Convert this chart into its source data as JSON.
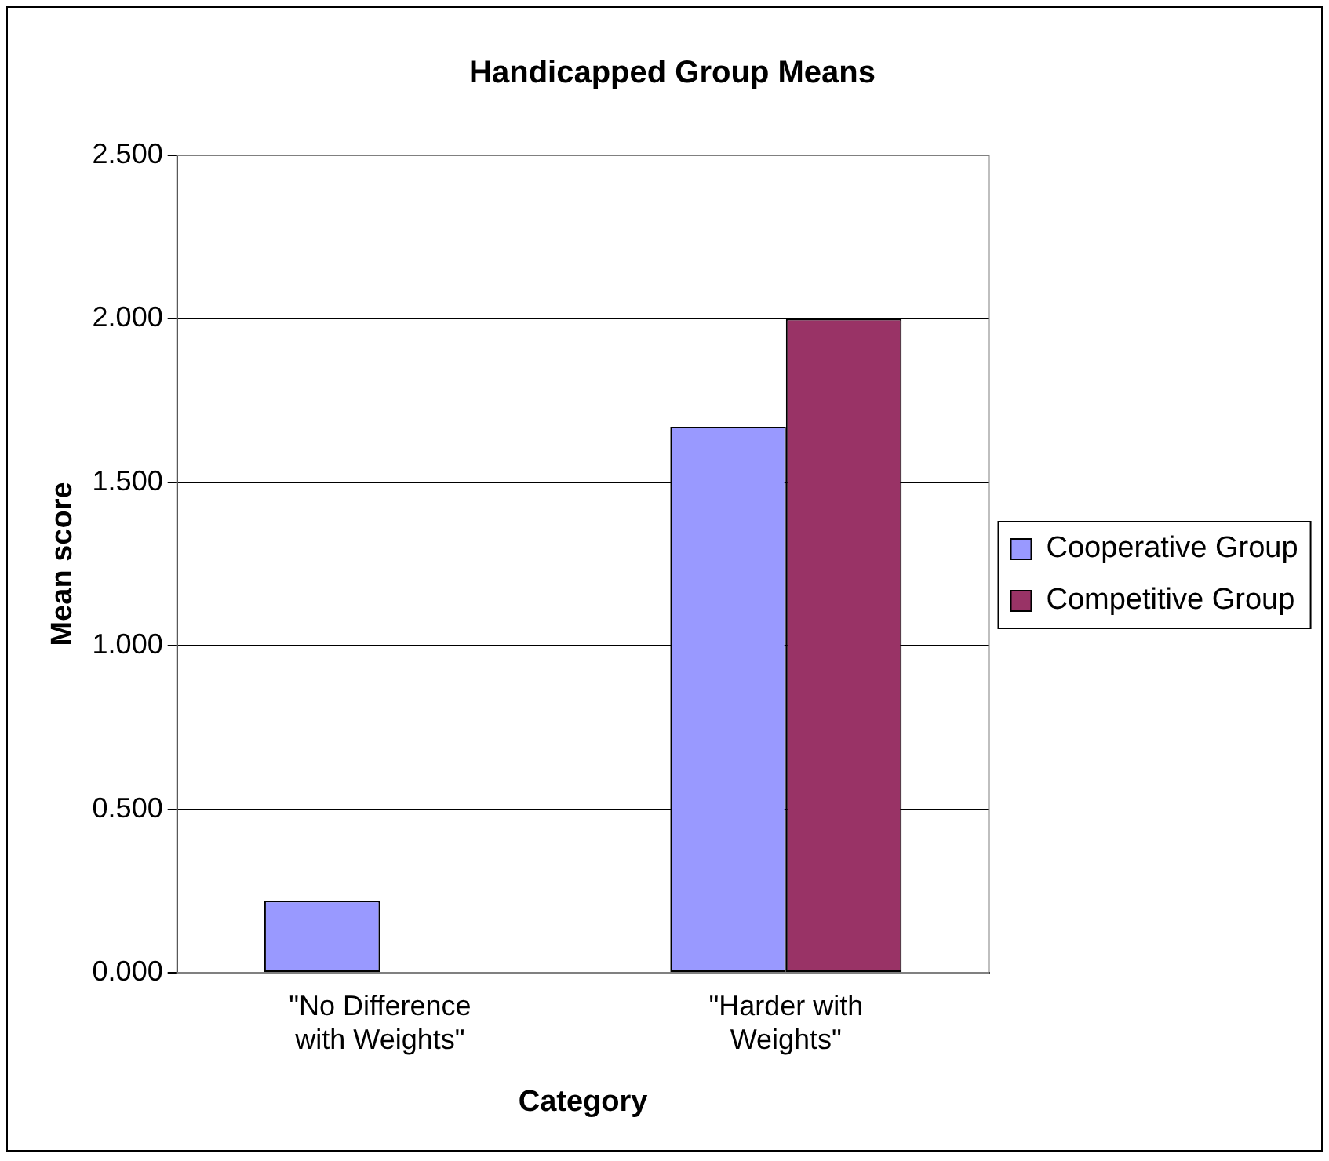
{
  "chart_data": {
    "type": "bar",
    "title": "Handicapped Group Means",
    "xlabel": "Category",
    "ylabel": "Mean score",
    "categories": [
      "\"No Difference with Weights\"",
      "\"Harder with Weights\""
    ],
    "series": [
      {
        "name": "Cooperative Group",
        "color": "#9999ff",
        "values": [
          0.22,
          1.67
        ]
      },
      {
        "name": "Competitive Group",
        "color": "#993366",
        "values": [
          0,
          2.0
        ]
      }
    ],
    "ylim": [
      0,
      2.5
    ],
    "yticks": [
      {
        "value": 0,
        "label": "0.000"
      },
      {
        "value": 0.5,
        "label": "0.500"
      },
      {
        "value": 1,
        "label": "1.000"
      },
      {
        "value": 1.5,
        "label": "1.500"
      },
      {
        "value": 2,
        "label": "2.000"
      },
      {
        "value": 2.5,
        "label": "2.500"
      }
    ],
    "grid": "y",
    "legend": "right"
  }
}
